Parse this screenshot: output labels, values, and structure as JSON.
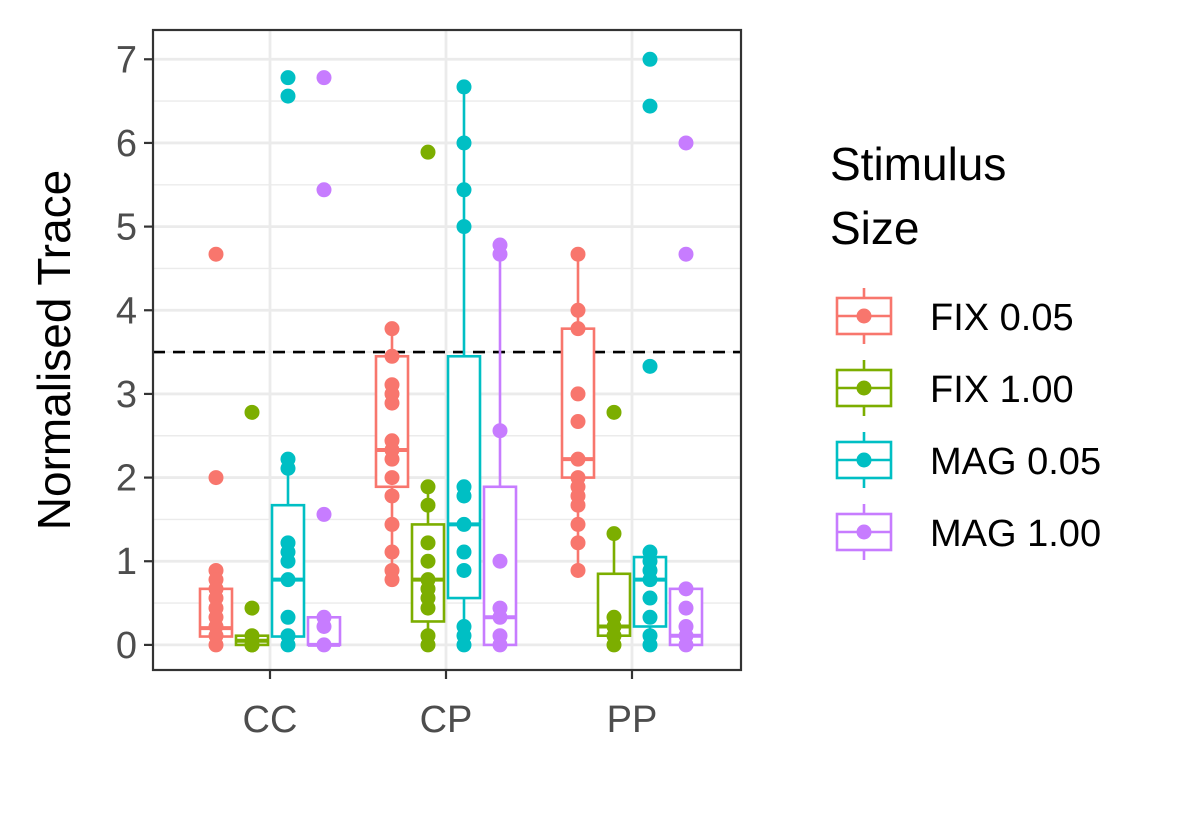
{
  "chart_data": {
    "type": "box",
    "ylabel": "Normalised Trace",
    "ylim": [
      -0.3,
      7.35
    ],
    "yticks": [
      0,
      1,
      2,
      3,
      4,
      5,
      6,
      7
    ],
    "categories": [
      "CC",
      "CP",
      "PP"
    ],
    "reference_line": {
      "y": 3.5,
      "style": "dashed",
      "color": "#000000"
    },
    "grid": true,
    "legend": {
      "title_lines": [
        "Stimulus",
        "Size"
      ],
      "position": "right"
    },
    "series": [
      {
        "name": "FIX 0.05",
        "color": "#F8766D",
        "boxes": [
          {
            "category": "CC",
            "q1": 0.1,
            "median": 0.2,
            "q3": 0.67,
            "whisker_low": 0.0,
            "whisker_high": 0.67
          },
          {
            "category": "CP",
            "q1": 1.89,
            "median": 2.33,
            "q3": 3.45,
            "whisker_low": 0.78,
            "whisker_high": 3.78
          },
          {
            "category": "PP",
            "q1": 2.0,
            "median": 2.22,
            "q3": 3.78,
            "whisker_low": 0.89,
            "whisker_high": 4.67
          }
        ],
        "points": [
          {
            "category": "CC",
            "values": [
              4.67,
              2.0,
              0.89,
              0.78,
              0.67,
              0.56,
              0.44,
              0.33,
              0.22,
              0.11,
              0.0
            ]
          },
          {
            "category": "CP",
            "values": [
              3.78,
              3.45,
              3.11,
              3.0,
              2.89,
              2.44,
              2.33,
              2.22,
              2.0,
              1.78,
              1.44,
              1.11,
              0.89,
              0.78
            ]
          },
          {
            "category": "PP",
            "values": [
              4.67,
              4.0,
              3.78,
              3.0,
              2.67,
              2.22,
              2.0,
              1.89,
              1.78,
              1.67,
              1.44,
              1.22,
              0.89
            ]
          }
        ]
      },
      {
        "name": "FIX 1.00",
        "color": "#7CAE00",
        "boxes": [
          {
            "category": "CC",
            "q1": 0.0,
            "median": 0.05,
            "q3": 0.11,
            "whisker_low": 0.0,
            "whisker_high": 0.11
          },
          {
            "category": "CP",
            "q1": 0.28,
            "median": 0.78,
            "q3": 1.44,
            "whisker_low": 0.0,
            "whisker_high": 1.89
          },
          {
            "category": "PP",
            "q1": 0.11,
            "median": 0.22,
            "q3": 0.85,
            "whisker_low": 0.0,
            "whisker_high": 1.33
          }
        ],
        "points": [
          {
            "category": "CC",
            "values": [
              2.78,
              0.44,
              0.11,
              0.0,
              0.0
            ]
          },
          {
            "category": "CP",
            "values": [
              5.89,
              1.89,
              1.67,
              1.22,
              1.0,
              0.78,
              0.67,
              0.56,
              0.44,
              0.11,
              0.0
            ]
          },
          {
            "category": "PP",
            "values": [
              2.78,
              1.33,
              0.33,
              0.22,
              0.11,
              0.0
            ]
          }
        ]
      },
      {
        "name": "MAG 0.05",
        "color": "#00BFC4",
        "boxes": [
          {
            "category": "CC",
            "q1": 0.1,
            "median": 0.78,
            "q3": 1.67,
            "whisker_low": 0.0,
            "whisker_high": 2.22
          },
          {
            "category": "CP",
            "q1": 0.56,
            "median": 1.44,
            "q3": 3.45,
            "whisker_low": 0.0,
            "whisker_high": 6.67
          },
          {
            "category": "PP",
            "q1": 0.22,
            "median": 0.78,
            "q3": 1.05,
            "whisker_low": 0.0,
            "whisker_high": 1.11
          }
        ],
        "points": [
          {
            "category": "CC",
            "values": [
              6.78,
              6.56,
              2.22,
              2.11,
              1.22,
              1.11,
              1.0,
              0.78,
              0.33,
              0.11,
              0.0
            ]
          },
          {
            "category": "CP",
            "values": [
              6.67,
              6.0,
              5.44,
              5.0,
              1.89,
              1.78,
              1.44,
              1.11,
              0.89,
              0.22,
              0.11,
              0.0
            ]
          },
          {
            "category": "PP",
            "values": [
              7.0,
              6.44,
              3.33,
              1.11,
              1.0,
              0.89,
              0.78,
              0.56,
              0.33,
              0.11,
              0.0
            ]
          }
        ]
      },
      {
        "name": "MAG 1.00",
        "color": "#C77CFF",
        "boxes": [
          {
            "category": "CC",
            "q1": 0.0,
            "median": 0.0,
            "q3": 0.33,
            "whisker_low": 0.0,
            "whisker_high": 0.33
          },
          {
            "category": "CP",
            "q1": 0.0,
            "median": 0.33,
            "q3": 1.89,
            "whisker_low": 0.0,
            "whisker_high": 4.78
          },
          {
            "category": "PP",
            "q1": 0.0,
            "median": 0.11,
            "q3": 0.67,
            "whisker_low": 0.0,
            "whisker_high": 0.67
          }
        ],
        "points": [
          {
            "category": "CC",
            "values": [
              6.78,
              5.44,
              1.56,
              0.33,
              0.22,
              0.0
            ]
          },
          {
            "category": "CP",
            "values": [
              4.78,
              4.67,
              2.56,
              1.0,
              0.44,
              0.33,
              0.11,
              0.0
            ]
          },
          {
            "category": "PP",
            "values": [
              6.0,
              4.67,
              0.67,
              0.44,
              0.22,
              0.11,
              0.0
            ]
          }
        ]
      }
    ]
  }
}
